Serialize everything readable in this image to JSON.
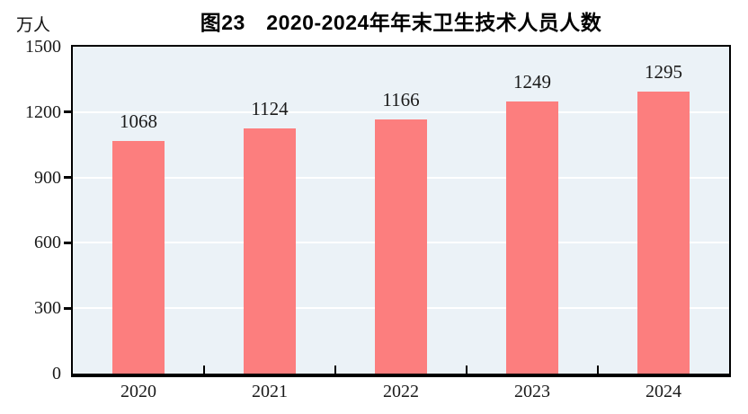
{
  "chart_data": {
    "type": "bar",
    "title": "图23　2020-2024年年末卫生技术人员人数",
    "figure_number": "图23",
    "ylabel": "万人",
    "xlabel": "",
    "categories": [
      "2020",
      "2021",
      "2022",
      "2023",
      "2024"
    ],
    "values": [
      1068,
      1124,
      1166,
      1249,
      1295
    ],
    "ylim": [
      0,
      1500
    ],
    "yticks": [
      0,
      300,
      600,
      900,
      1200,
      1500
    ],
    "grid": true,
    "legend": false,
    "bar_width_fraction": 0.4,
    "colors": {
      "bar": "#fc7e7e",
      "plot_background": "#ebf2f7",
      "gridline": "#ffffff",
      "axis": "#000000",
      "text": "#1a1a1a"
    }
  }
}
